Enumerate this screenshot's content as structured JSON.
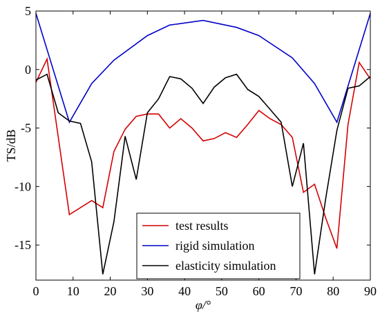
{
  "chart_data": {
    "type": "line",
    "xlabel": "φ/°",
    "ylabel": "TS/dB",
    "xlim": [
      0,
      90
    ],
    "ylim": [
      -18,
      5
    ],
    "xticks": [
      0,
      10,
      20,
      30,
      40,
      50,
      60,
      70,
      80,
      90
    ],
    "yticks": [
      5,
      0,
      -5,
      -10,
      -15
    ],
    "grid": false,
    "legend_position": "bottom-center",
    "series": [
      {
        "name": "test results",
        "color": "#d40000",
        "x": [
          0,
          3,
          9,
          15,
          18,
          21,
          24,
          27,
          30,
          33,
          36,
          39,
          42,
          45,
          48,
          51,
          54,
          57,
          60,
          63,
          66,
          69,
          72,
          75,
          78,
          81,
          84,
          87,
          90
        ],
        "y": [
          -1.1,
          0.9,
          -12.4,
          -11.2,
          -11.8,
          -7.0,
          -5.1,
          -4.0,
          -3.8,
          -3.8,
          -5.0,
          -4.2,
          -5.0,
          -6.1,
          -5.9,
          -5.4,
          -5.8,
          -4.7,
          -3.5,
          -4.2,
          -4.7,
          -5.8,
          -10.5,
          -9.8,
          -12.7,
          -15.3,
          -4.7,
          0.6,
          -0.8
        ]
      },
      {
        "name": "rigid simulation",
        "color": "#0000c8",
        "x": [
          0,
          9,
          15,
          21,
          30,
          36,
          45,
          54,
          60,
          69,
          75,
          81,
          90
        ],
        "y": [
          4.8,
          -4.5,
          -1.2,
          0.8,
          2.9,
          3.8,
          4.2,
          3.6,
          2.9,
          1.0,
          -1.2,
          -4.5,
          4.8
        ]
      },
      {
        "name": "elasticity simulation",
        "color": "#000000",
        "x": [
          0,
          3,
          6,
          9,
          12,
          15,
          18,
          21,
          24,
          27,
          30,
          33,
          36,
          39,
          42,
          45,
          48,
          51,
          54,
          57,
          60,
          63,
          66,
          69,
          72,
          75,
          78,
          81,
          84,
          87,
          90
        ],
        "y": [
          -0.9,
          -0.4,
          -3.7,
          -4.4,
          -4.6,
          -7.9,
          -17.5,
          -13.0,
          -5.7,
          -9.4,
          -3.7,
          -2.5,
          -0.6,
          -0.8,
          -1.6,
          -2.9,
          -1.5,
          -0.7,
          -0.4,
          -1.7,
          -2.3,
          -3.4,
          -4.5,
          -10.0,
          -6.3,
          -17.5,
          -11.0,
          -5.2,
          -1.6,
          -1.4,
          -0.6
        ]
      }
    ]
  }
}
